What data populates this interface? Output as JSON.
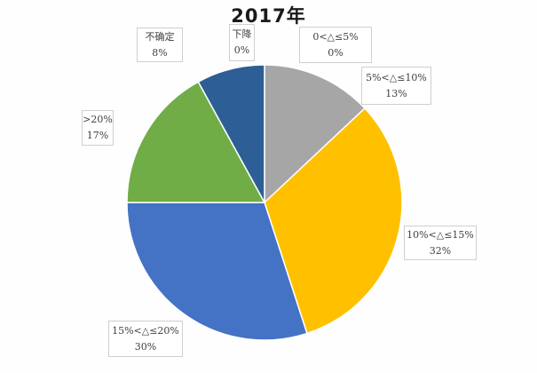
{
  "chart_data": {
    "type": "pie",
    "title": "2017年",
    "legend": "none",
    "start_angle_deg": 0,
    "direction": "clockwise",
    "units": "percent",
    "slices": [
      {
        "label": "下降",
        "value": 0,
        "value_label": "0%",
        "color": null
      },
      {
        "label": "0<△≤5%",
        "value": 0,
        "value_label": "0%",
        "color": null
      },
      {
        "label": "5%<△≤10%",
        "value": 13,
        "value_label": "13%",
        "color": "#A6A6A6"
      },
      {
        "label": "10%<△≤15%",
        "value": 32,
        "value_label": "32%",
        "color": "#FFC000"
      },
      {
        "label": "15%<△≤20%",
        "value": 30,
        "value_label": "30%",
        "color": "#4472C4"
      },
      {
        "label": ">20%",
        "value": 17,
        "value_label": "17%",
        "color": "#70AD47"
      },
      {
        "label": "不确定",
        "value": 8,
        "value_label": "8%",
        "color": "#2D5F96"
      }
    ]
  }
}
